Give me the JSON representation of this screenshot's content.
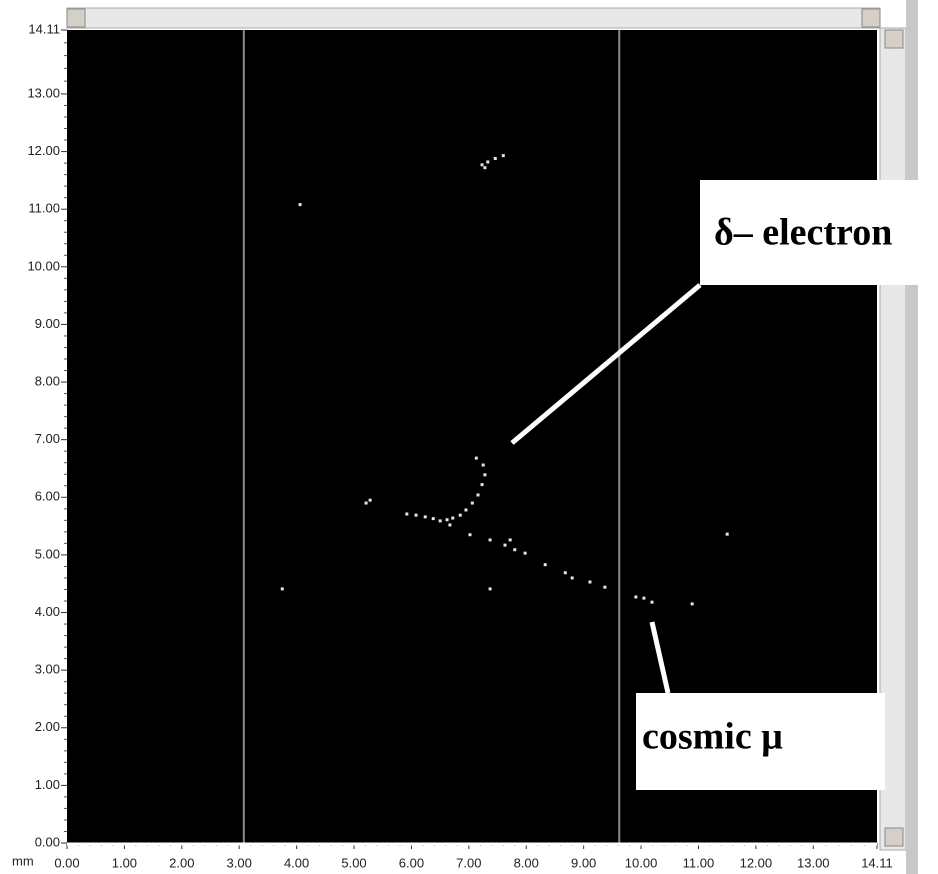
{
  "chart_data": {
    "type": "scatter",
    "x_label": "mm",
    "xlim": [
      0,
      14.11
    ],
    "ylim": [
      0,
      14.11
    ],
    "xticks": [
      {
        "value": 0,
        "label": "0.00"
      },
      {
        "value": 1,
        "label": "1.00"
      },
      {
        "value": 2,
        "label": "2.00"
      },
      {
        "value": 3,
        "label": "3.00"
      },
      {
        "value": 4,
        "label": "4.00"
      },
      {
        "value": 5,
        "label": "5.00"
      },
      {
        "value": 6,
        "label": "6.00"
      },
      {
        "value": 7,
        "label": "7.00"
      },
      {
        "value": 8,
        "label": "8.00"
      },
      {
        "value": 9,
        "label": "9.00"
      },
      {
        "value": 10,
        "label": "10.00"
      },
      {
        "value": 11,
        "label": "11.00"
      },
      {
        "value": 12,
        "label": "12.00"
      },
      {
        "value": 13,
        "label": "13.00"
      },
      14.11
    ],
    "yticks": [
      {
        "value": 0,
        "label": "0.00"
      },
      {
        "value": 1,
        "label": "1.00"
      },
      {
        "value": 2,
        "label": "2.00"
      },
      {
        "value": 3,
        "label": "3.00"
      },
      {
        "value": 4,
        "label": "4.00"
      },
      {
        "value": 5,
        "label": "5.00"
      },
      {
        "value": 6,
        "label": "6.00"
      },
      {
        "value": 7,
        "label": "7.00"
      },
      {
        "value": 8,
        "label": "8.00"
      },
      {
        "value": 9,
        "label": "9.00"
      },
      {
        "value": 10,
        "label": "10.00"
      },
      {
        "value": 11,
        "label": "11.00"
      },
      {
        "value": 12,
        "label": "12.00"
      },
      {
        "value": 13,
        "label": "13.00"
      },
      14.11
    ],
    "cursors": [
      3.08,
      9.62
    ],
    "color": "#e6e6e6",
    "x": [
      4.06,
      7.23,
      7.33,
      7.46,
      7.6,
      7.28,
      5.28,
      5.21,
      3.75,
      11.5,
      7.37,
      10.89,
      7.13,
      7.25,
      7.28,
      7.23,
      7.16,
      7.06,
      6.95,
      6.85,
      6.72,
      6.62,
      6.5,
      6.38,
      6.24,
      6.08,
      5.92,
      6.67,
      7.02,
      7.37,
      7.63,
      7.8,
      7.98,
      8.33,
      8.68,
      8.8,
      9.11,
      9.37,
      9.91,
      10.05,
      10.19,
      7.72
    ],
    "y": [
      11.08,
      11.77,
      11.82,
      11.88,
      11.93,
      11.72,
      5.95,
      5.9,
      4.41,
      5.36,
      4.41,
      4.15,
      6.68,
      6.56,
      6.39,
      6.22,
      6.04,
      5.9,
      5.78,
      5.69,
      5.64,
      5.61,
      5.59,
      5.63,
      5.66,
      5.69,
      5.71,
      5.52,
      5.35,
      5.26,
      5.17,
      5.09,
      5.03,
      4.83,
      4.69,
      4.6,
      4.53,
      4.44,
      4.27,
      4.25,
      4.18,
      5.26
    ],
    "annotations": [
      "δ– electron",
      "cosmic μ"
    ]
  }
}
